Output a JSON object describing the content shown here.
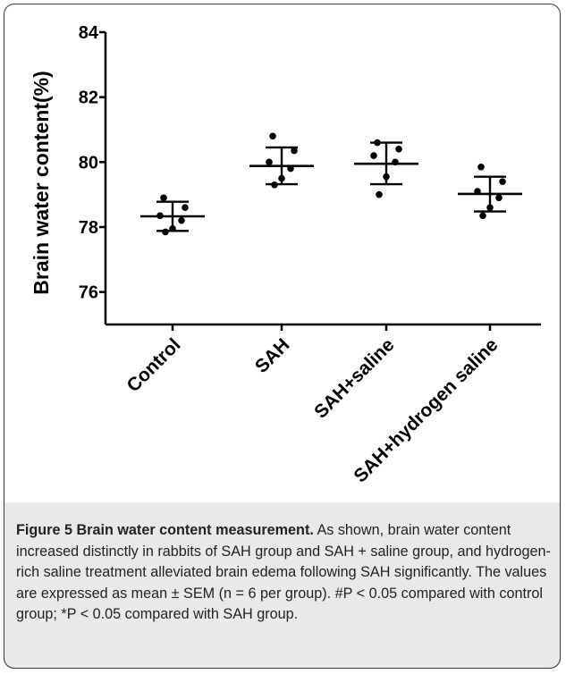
{
  "chart_data": {
    "type": "scatter",
    "title": "",
    "xlabel": "",
    "ylabel": "Brain water content(%)",
    "ylim": [
      75,
      84
    ],
    "yticks": [
      76,
      78,
      80,
      82,
      84
    ],
    "categories": [
      "Control",
      "SAH",
      "SAH+saline",
      "SAH+hydrogen saline"
    ],
    "groups": [
      {
        "name": "Control",
        "mean": 78.33,
        "sem_upper": 78.78,
        "sem_lower": 77.88,
        "points": [
          78.9,
          78.6,
          78.35,
          78.2,
          77.95,
          77.85
        ]
      },
      {
        "name": "SAH",
        "mean": 79.88,
        "sem_upper": 80.45,
        "sem_lower": 79.32,
        "points": [
          80.8,
          80.35,
          80.0,
          79.8,
          79.5,
          79.3
        ]
      },
      {
        "name": "SAH+saline",
        "mean": 79.95,
        "sem_upper": 80.6,
        "sem_lower": 79.32,
        "points": [
          80.6,
          80.4,
          80.2,
          80.0,
          79.55,
          79.0
        ]
      },
      {
        "name": "SAH+hydrogen saline",
        "mean": 79.02,
        "sem_upper": 79.55,
        "sem_lower": 78.48,
        "points": [
          79.85,
          79.4,
          79.1,
          78.9,
          78.6,
          78.35
        ]
      }
    ],
    "grid": false,
    "legend": "none"
  },
  "caption": {
    "label": "Figure 5 Brain water content measurement.",
    "text": " As shown, brain water content increased distinctly in rabbits of SAH group and SAH + saline group, and hydrogen-rich saline treatment alleviated brain edema following SAH significantly. The values are expressed as mean ± SEM (n = 6 per group). #P < 0.05 compared with control group; *P < 0.05 compared with SAH group."
  },
  "colors": {
    "ink": "#000000",
    "caption_bg": "#e9e9ea",
    "frame": "#3a3a3a"
  }
}
